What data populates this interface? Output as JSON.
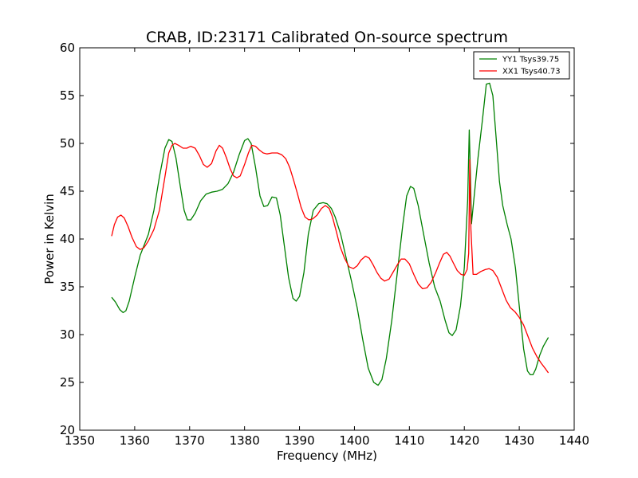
{
  "chart_data": {
    "type": "line",
    "title": "CRAB, ID:23171 Calibrated On-source spectrum",
    "xlabel": "Frequency (MHz)",
    "ylabel": "Power in Kelvin",
    "xlim": [
      1350,
      1440
    ],
    "ylim": [
      20,
      60
    ],
    "xticks": [
      1350,
      1360,
      1370,
      1380,
      1390,
      1400,
      1410,
      1420,
      1430,
      1440
    ],
    "yticks": [
      20,
      25,
      30,
      35,
      40,
      45,
      50,
      55,
      60
    ],
    "grid": false,
    "legend_position": "top-right",
    "series": [
      {
        "name": "YY1 Tsys39.75",
        "color": "#008000",
        "x": [
          1355.8,
          1356.5,
          1357.3,
          1357.9,
          1358.4,
          1359.0,
          1360.0,
          1361.0,
          1362.5,
          1363.5,
          1364.5,
          1365.5,
          1366.2,
          1366.8,
          1367.5,
          1368.3,
          1369.0,
          1369.6,
          1370.2,
          1371.0,
          1372.0,
          1373.0,
          1374.0,
          1375.0,
          1376.0,
          1377.0,
          1378.0,
          1379.0,
          1380.0,
          1380.6,
          1381.2,
          1382.0,
          1382.8,
          1383.5,
          1384.2,
          1385.0,
          1385.8,
          1386.5,
          1387.3,
          1388.0,
          1388.8,
          1389.4,
          1390.0,
          1390.8,
          1391.6,
          1392.5,
          1393.5,
          1394.3,
          1395.0,
          1395.8,
          1396.5,
          1397.5,
          1398.5,
          1399.5,
          1400.5,
          1401.5,
          1402.5,
          1403.5,
          1404.3,
          1405.0,
          1405.8,
          1406.8,
          1407.8,
          1408.8,
          1409.5,
          1410.2,
          1410.8,
          1411.6,
          1412.6,
          1413.6,
          1414.6,
          1415.6,
          1416.5,
          1417.2,
          1417.8,
          1418.5,
          1419.3,
          1420.0,
          1420.6,
          1420.9,
          1421.1,
          1421.3,
          1421.8,
          1422.5,
          1423.3,
          1424.0,
          1424.6,
          1425.2,
          1425.8,
          1426.4,
          1427.0,
          1427.8,
          1428.5,
          1429.3,
          1430.0,
          1430.8,
          1431.5,
          1432.0,
          1432.5,
          1433.0,
          1433.7,
          1434.4,
          1435.3
        ],
        "y": [
          33.9,
          33.4,
          32.6,
          32.3,
          32.5,
          33.5,
          36.0,
          38.3,
          40.5,
          43.0,
          46.5,
          49.5,
          50.4,
          50.2,
          48.5,
          45.5,
          43.0,
          42.0,
          42.0,
          42.7,
          44.0,
          44.7,
          44.9,
          45.0,
          45.2,
          45.8,
          47.0,
          48.8,
          50.3,
          50.5,
          50.0,
          47.5,
          44.5,
          43.4,
          43.5,
          44.4,
          44.3,
          42.5,
          39.0,
          36.0,
          33.8,
          33.5,
          34.0,
          36.5,
          40.5,
          43.0,
          43.7,
          43.8,
          43.7,
          43.2,
          42.3,
          40.5,
          38.0,
          35.5,
          32.8,
          29.5,
          26.5,
          25.0,
          24.7,
          25.3,
          27.5,
          31.5,
          36.5,
          41.5,
          44.5,
          45.5,
          45.3,
          43.5,
          40.5,
          37.5,
          35.0,
          33.5,
          31.5,
          30.2,
          29.9,
          30.5,
          33.0,
          37.0,
          44.0,
          51.4,
          47.0,
          41.6,
          44.5,
          48.5,
          52.5,
          56.2,
          56.3,
          55.0,
          50.5,
          46.0,
          43.5,
          41.5,
          40.0,
          37.0,
          33.0,
          28.5,
          26.2,
          25.8,
          25.8,
          26.4,
          27.8,
          28.8,
          29.7
        ]
      },
      {
        "name": "XX1 Tsys40.73",
        "color": "#ff0000",
        "x": [
          1355.8,
          1356.3,
          1356.9,
          1357.5,
          1358.1,
          1358.8,
          1359.5,
          1360.3,
          1361.0,
          1361.7,
          1362.5,
          1363.5,
          1364.5,
          1365.5,
          1366.2,
          1366.8,
          1367.3,
          1368.0,
          1368.8,
          1369.5,
          1370.2,
          1371.0,
          1371.8,
          1372.5,
          1373.2,
          1374.0,
          1374.8,
          1375.4,
          1376.0,
          1376.7,
          1377.4,
          1378.0,
          1378.6,
          1379.2,
          1380.0,
          1380.7,
          1381.3,
          1382.0,
          1382.7,
          1383.4,
          1384.1,
          1385.0,
          1386.0,
          1386.8,
          1387.5,
          1388.2,
          1388.9,
          1389.6,
          1390.3,
          1391.0,
          1391.7,
          1392.4,
          1393.2,
          1394.0,
          1394.7,
          1395.4,
          1396.0,
          1396.7,
          1397.4,
          1398.2,
          1399.0,
          1399.8,
          1400.5,
          1401.2,
          1402.0,
          1402.7,
          1403.4,
          1404.1,
          1404.8,
          1405.5,
          1406.3,
          1407.0,
          1407.8,
          1408.5,
          1409.2,
          1410.0,
          1410.8,
          1411.6,
          1412.4,
          1413.2,
          1414.0,
          1414.8,
          1415.5,
          1416.2,
          1416.8,
          1417.4,
          1418.0,
          1418.7,
          1419.4,
          1420.0,
          1420.5,
          1420.8,
          1421.0,
          1421.2,
          1421.6,
          1422.2,
          1423.0,
          1423.8,
          1424.5,
          1425.2,
          1426.0,
          1426.8,
          1427.6,
          1428.4,
          1429.2,
          1430.0,
          1430.8,
          1431.6,
          1432.4,
          1433.2,
          1434.0,
          1434.8,
          1435.3
        ],
        "y": [
          40.3,
          41.5,
          42.3,
          42.5,
          42.2,
          41.3,
          40.2,
          39.2,
          38.9,
          39.1,
          39.8,
          41.0,
          43.0,
          46.5,
          49.0,
          49.8,
          50.0,
          49.8,
          49.5,
          49.5,
          49.7,
          49.5,
          48.7,
          47.8,
          47.5,
          47.9,
          49.2,
          49.8,
          49.5,
          48.5,
          47.3,
          46.6,
          46.4,
          46.6,
          47.8,
          49.0,
          49.8,
          49.7,
          49.3,
          49.0,
          48.9,
          49.0,
          49.0,
          48.8,
          48.4,
          47.5,
          46.2,
          44.8,
          43.3,
          42.3,
          42.0,
          42.1,
          42.5,
          43.2,
          43.5,
          43.2,
          42.3,
          40.8,
          39.2,
          38.0,
          37.1,
          36.9,
          37.2,
          37.8,
          38.2,
          38.0,
          37.3,
          36.5,
          35.9,
          35.6,
          35.8,
          36.5,
          37.3,
          37.9,
          37.9,
          37.4,
          36.3,
          35.3,
          34.8,
          34.9,
          35.5,
          36.5,
          37.5,
          38.4,
          38.6,
          38.2,
          37.5,
          36.7,
          36.3,
          36.2,
          36.8,
          38.5,
          48.3,
          41.0,
          36.3,
          36.3,
          36.6,
          36.8,
          36.9,
          36.7,
          36.0,
          34.8,
          33.6,
          32.8,
          32.4,
          31.8,
          31.0,
          29.8,
          28.6,
          27.7,
          27.0,
          26.4,
          26.0
        ]
      }
    ]
  }
}
